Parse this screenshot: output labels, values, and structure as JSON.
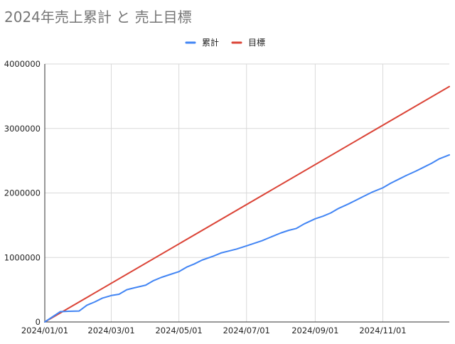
{
  "chart_data": {
    "type": "line",
    "title": "2024年売上累計 と 売上目標",
    "xlabel": "",
    "ylabel": "",
    "x_range": [
      "2024/01/01",
      "2024/12/31"
    ],
    "ylim": [
      0,
      4000000
    ],
    "y_ticks": [
      "0",
      "1000000",
      "2000000",
      "3000000",
      "4000000"
    ],
    "x_ticks": [
      "2024/01/01",
      "2024/03/01",
      "2024/05/01",
      "2024/07/01",
      "2024/09/01",
      "2024/11/01"
    ],
    "grid": true,
    "legend_position": "top",
    "series": [
      {
        "name": "累計",
        "color": "#4285F4",
        "points": [
          [
            "2024/01/01",
            0
          ],
          [
            "2024/01/08",
            80000
          ],
          [
            "2024/01/15",
            160000
          ],
          [
            "2024/01/22",
            165000
          ],
          [
            "2024/02/01",
            170000
          ],
          [
            "2024/02/08",
            260000
          ],
          [
            "2024/02/15",
            310000
          ],
          [
            "2024/02/22",
            370000
          ],
          [
            "2024/03/01",
            410000
          ],
          [
            "2024/03/08",
            430000
          ],
          [
            "2024/03/15",
            500000
          ],
          [
            "2024/03/22",
            530000
          ],
          [
            "2024/04/01",
            570000
          ],
          [
            "2024/04/08",
            640000
          ],
          [
            "2024/04/15",
            690000
          ],
          [
            "2024/04/22",
            730000
          ],
          [
            "2024/05/01",
            780000
          ],
          [
            "2024/05/08",
            850000
          ],
          [
            "2024/05/15",
            900000
          ],
          [
            "2024/05/22",
            960000
          ],
          [
            "2024/06/01",
            1020000
          ],
          [
            "2024/06/08",
            1070000
          ],
          [
            "2024/06/15",
            1100000
          ],
          [
            "2024/06/22",
            1130000
          ],
          [
            "2024/07/01",
            1180000
          ],
          [
            "2024/07/08",
            1220000
          ],
          [
            "2024/07/15",
            1260000
          ],
          [
            "2024/07/22",
            1310000
          ],
          [
            "2024/08/01",
            1380000
          ],
          [
            "2024/08/08",
            1420000
          ],
          [
            "2024/08/15",
            1450000
          ],
          [
            "2024/08/22",
            1520000
          ],
          [
            "2024/09/01",
            1600000
          ],
          [
            "2024/09/08",
            1640000
          ],
          [
            "2024/09/15",
            1690000
          ],
          [
            "2024/09/22",
            1760000
          ],
          [
            "2024/10/01",
            1830000
          ],
          [
            "2024/10/08",
            1890000
          ],
          [
            "2024/10/15",
            1950000
          ],
          [
            "2024/10/22",
            2010000
          ],
          [
            "2024/11/01",
            2080000
          ],
          [
            "2024/11/08",
            2150000
          ],
          [
            "2024/11/15",
            2210000
          ],
          [
            "2024/11/22",
            2270000
          ],
          [
            "2024/12/01",
            2340000
          ],
          [
            "2024/12/08",
            2400000
          ],
          [
            "2024/12/15",
            2460000
          ],
          [
            "2024/12/22",
            2530000
          ],
          [
            "2024/12/31",
            2590000
          ]
        ]
      },
      {
        "name": "目標",
        "color": "#DB4437",
        "points": [
          [
            "2024/01/01",
            0
          ],
          [
            "2024/12/31",
            3650000
          ]
        ]
      }
    ]
  }
}
